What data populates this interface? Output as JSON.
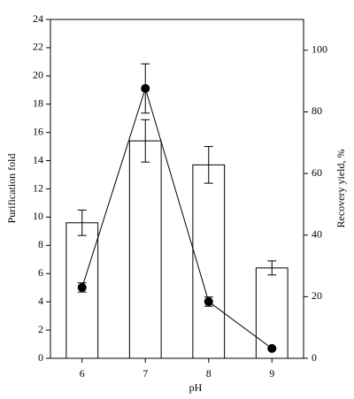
{
  "chart_data": {
    "type": "bar",
    "categories": [
      "6",
      "7",
      "8",
      "9"
    ],
    "xlabel": "pH",
    "ylabel": "Purification fold",
    "y2label": "Recovery yield, %",
    "series": [
      {
        "type": "bar",
        "color": "#ffffff",
        "values": [
          9.6,
          15.4,
          13.7,
          6.4
        ],
        "errors": [
          0.9,
          1.5,
          1.3,
          0.5
        ]
      },
      {
        "type": "line",
        "axis": "y2",
        "color": "#000000",
        "values": [
          23,
          87.6,
          18.4,
          3.2
        ],
        "errors": [
          1.5,
          8,
          1.5,
          0
        ]
      }
    ],
    "ylim": [
      0,
      24
    ],
    "yticks": [
      0,
      2,
      4,
      6,
      8,
      10,
      12,
      14,
      16,
      18,
      20,
      22,
      24
    ],
    "y2lim": [
      0,
      110
    ],
    "y2ticks": [
      0,
      20,
      40,
      60,
      80,
      100
    ]
  }
}
